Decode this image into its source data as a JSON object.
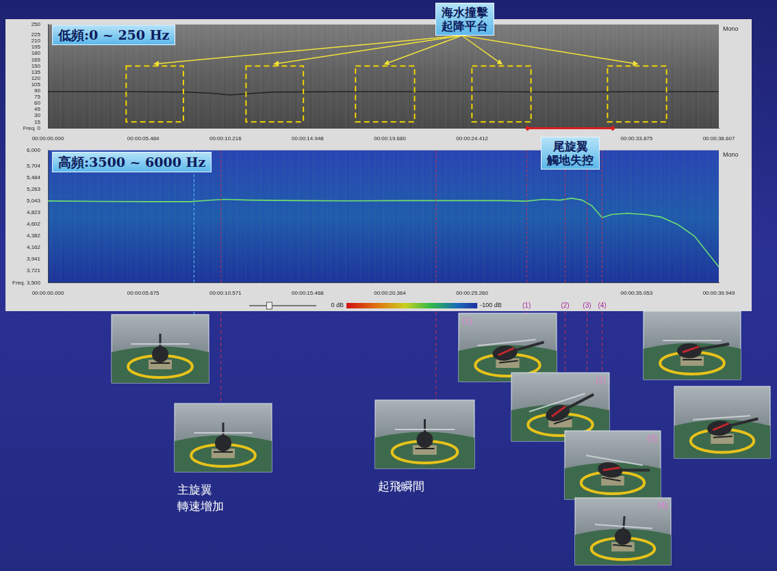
{
  "chart_data": [
    {
      "type": "spectrogram",
      "title": "低頻:0 ~ 250 Hz",
      "channel": "Mono",
      "xlim": [
        0,
        38.607
      ],
      "xticks": [
        {
          "value": 0,
          "label": "00:00:00.000"
        },
        {
          "value": 5.484,
          "label": "00:00:05.484"
        },
        {
          "value": 10.216,
          "label": "00:00:10.216"
        },
        {
          "value": 14.948,
          "label": "00:00:14.948"
        },
        {
          "value": 19.68,
          "label": "00:00:19.680"
        },
        {
          "value": 24.412,
          "label": "00:00:24.412"
        },
        {
          "value": 33.875,
          "label": "00:00:33.875"
        },
        {
          "value": 38.607,
          "label": "00:00:38.607"
        }
      ],
      "ylim": [
        0,
        250
      ],
      "yticks": [
        {
          "value": 0,
          "label": "Freq. 0"
        },
        15,
        30,
        45,
        60,
        75,
        90,
        105,
        120,
        135,
        150,
        165,
        180,
        195,
        210,
        225,
        250
      ],
      "grid": false,
      "series": [
        {
          "color": "#262626",
          "x": [
            0,
            4,
            8,
            9.5,
            10.5,
            11.5,
            13,
            18,
            24,
            30,
            35,
            38.607
          ],
          "values": [
            88,
            88,
            87,
            84,
            80,
            83,
            87,
            88,
            88,
            87,
            88,
            88
          ]
        }
      ],
      "boxes": [
        {
          "x": [
            4.5,
            7.8
          ],
          "y": [
            15,
            150
          ]
        },
        {
          "x": [
            11.4,
            14.7
          ],
          "y": [
            15,
            150
          ]
        },
        {
          "x": [
            17.7,
            21.1
          ],
          "y": [
            15,
            150
          ]
        },
        {
          "x": [
            24.4,
            27.8
          ],
          "y": [
            15,
            150
          ]
        },
        {
          "x": [
            32.2,
            35.6
          ],
          "y": [
            15,
            150
          ]
        }
      ],
      "box_label": [
        "海水撞擊",
        "起降平台"
      ],
      "span": {
        "x": [
          27.6,
          32.5
        ],
        "label": [
          "尾旋翼",
          "觸地失控"
        ]
      }
    },
    {
      "type": "spectrogram",
      "title": "高頻:3500 ~ 6000 Hz",
      "channel": "Mono",
      "xlim": [
        0,
        39.949
      ],
      "xticks": [
        {
          "value": 0,
          "label": "00:00:00.000"
        },
        {
          "value": 5.675,
          "label": "00:00:05.675"
        },
        {
          "value": 10.571,
          "label": "00:00:10.571"
        },
        {
          "value": 15.468,
          "label": "00:00:15.468"
        },
        {
          "value": 20.364,
          "label": "00:00:20.364"
        },
        {
          "value": 25.26,
          "label": "00:00:25.260"
        },
        {
          "value": 35.053,
          "label": "00:00:35.053"
        },
        {
          "value": 39.949,
          "label": "00:00:39.949"
        }
      ],
      "ylim": [
        3500,
        6000
      ],
      "yticks": [
        {
          "value": 3500,
          "label": "Freq. 3,500"
        },
        {
          "value": 3721,
          "label": "3,721"
        },
        {
          "value": 3941,
          "label": "3,941"
        },
        {
          "value": 4162,
          "label": "4,162"
        },
        {
          "value": 4382,
          "label": "4,382"
        },
        {
          "value": 4602,
          "label": "4,602"
        },
        {
          "value": 4823,
          "label": "4,823"
        },
        {
          "value": 5043,
          "label": "5,043"
        },
        {
          "value": 5263,
          "label": "5,263"
        },
        {
          "value": 5484,
          "label": "5,484"
        },
        {
          "value": 5704,
          "label": "5,704"
        },
        {
          "value": 6000,
          "label": "6,000"
        }
      ],
      "grid": false,
      "series": [
        {
          "color": "#6fe06f",
          "x": [
            0,
            3,
            6,
            8.5,
            9.5,
            10.5,
            12,
            15,
            18,
            21,
            24,
            27,
            28.5,
            29.5,
            30.5,
            31.2,
            31.8,
            32.4,
            33,
            33.6,
            34.5,
            35.5,
            36.5,
            37.5,
            38.5,
            39.949
          ],
          "values": [
            5043,
            5035,
            5030,
            5030,
            5055,
            5075,
            5060,
            5050,
            5045,
            5050,
            5050,
            5050,
            5040,
            5075,
            5060,
            5095,
            5060,
            4950,
            4730,
            4790,
            4810,
            4790,
            4740,
            4600,
            4380,
            3800
          ]
        }
      ],
      "colorbar": {
        "range": [
          0,
          -100
        ],
        "ticks": [
          {
            "value": 0,
            "label": "0 dB"
          },
          {
            "value": -100,
            "label": "-100 dB"
          }
        ]
      },
      "markers": [
        {
          "x": 8.7,
          "color": "#5ac8f0"
        },
        {
          "x": 10.3,
          "color": "#c8324e"
        },
        {
          "x": 23.1,
          "color": "#c8324e"
        },
        {
          "x": 28.5,
          "color": "#c8324e",
          "label": "(1)"
        },
        {
          "x": 30.8,
          "color": "#c8324e",
          "label": "(2)"
        },
        {
          "x": 32.1,
          "color": "#c8324e",
          "label": "(3)"
        },
        {
          "x": 33.0,
          "color": "#c8324e",
          "label": "(4)"
        }
      ]
    }
  ],
  "photos": [
    {
      "marker": 0
    },
    {
      "marker": 1,
      "caption": [
        "主旋翼",
        "轉速增加"
      ]
    },
    {
      "marker": 2,
      "caption": [
        "起飛瞬間"
      ]
    },
    {
      "marker": 3,
      "label": "(1)"
    },
    {
      "marker": 4,
      "label": "(2)"
    },
    {
      "marker": 5,
      "label": "(3)"
    },
    {
      "marker": 6,
      "label": "(4)"
    },
    {
      "marker": null
    },
    {
      "marker": null
    }
  ]
}
